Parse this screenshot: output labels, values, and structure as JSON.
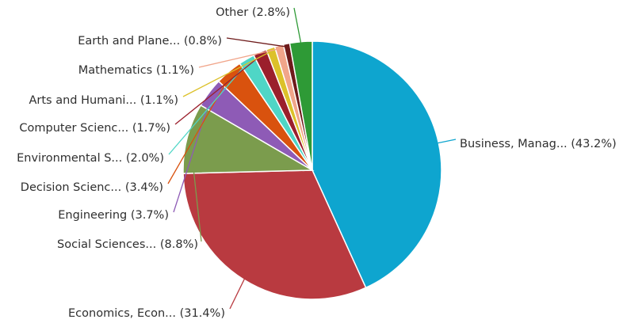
{
  "chart_data": {
    "type": "pie",
    "title": "",
    "start_angle_deg": 0,
    "direction": "clockwise",
    "slices": [
      {
        "label": "Business, Manag... (43.2%)",
        "name": "Business, Manag...",
        "value": 43.2,
        "color": "#0ea5cf"
      },
      {
        "label": "Economics, Econ... (31.4%)",
        "name": "Economics, Econ...",
        "value": 31.4,
        "color": "#b93a40"
      },
      {
        "label": "Social Sciences... (8.8%)",
        "name": "Social Sciences...",
        "value": 8.8,
        "color": "#7b9c4d"
      },
      {
        "label": "Engineering (3.7%)",
        "name": "Engineering",
        "value": 3.7,
        "color": "#8e5bb6"
      },
      {
        "label": "Decision Scienc... (3.4%)",
        "name": "Decision Scienc...",
        "value": 3.4,
        "color": "#d9520e"
      },
      {
        "label": "Environmental S... (2.0%)",
        "name": "Environmental S...",
        "value": 2.0,
        "color": "#4fd6c6"
      },
      {
        "label": "Computer Scienc... (1.7%)",
        "name": "Computer Scienc...",
        "value": 1.7,
        "color": "#9b1f2c"
      },
      {
        "label": "Arts and Humani... (1.1%)",
        "name": "Arts and Humani...",
        "value": 1.1,
        "color": "#dcc12a"
      },
      {
        "label": "Mathematics (1.1%)",
        "name": "Mathematics",
        "value": 1.1,
        "color": "#f1a58a"
      },
      {
        "label": "Earth and Plane... (0.8%)",
        "name": "Earth and Plane...",
        "value": 0.8,
        "color": "#6e1b1b"
      },
      {
        "label": "Other (2.8%)",
        "name": "Other",
        "value": 2.8,
        "color": "#2e9a36"
      }
    ]
  }
}
